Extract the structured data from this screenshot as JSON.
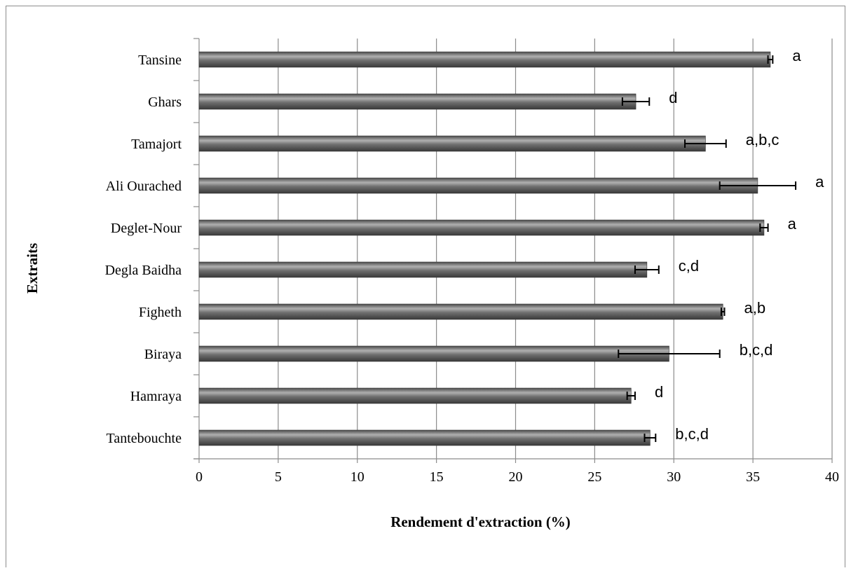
{
  "chart_data": {
    "type": "bar",
    "orientation": "horizontal",
    "categories": [
      "Tansine",
      "Ghars",
      "Tamajort",
      "Ali Ourached",
      "Deglet-Nour",
      "Degla Baidha",
      "Figheth",
      "Biraya",
      "Hamraya",
      "Tantebouchte"
    ],
    "values": [
      36.1,
      27.6,
      32.0,
      35.3,
      35.7,
      28.3,
      33.1,
      29.7,
      27.3,
      28.5
    ],
    "errors": [
      0.15,
      0.85,
      1.3,
      2.4,
      0.25,
      0.75,
      0.1,
      3.2,
      0.25,
      0.35
    ],
    "significance": [
      "a",
      "d",
      "a,b,c",
      "a",
      "a",
      "c,d",
      "a,b",
      "b,c,d",
      "d",
      "b,c,d"
    ],
    "xlabel": "Rendement d'extraction  (%)",
    "ylabel": "Extraits",
    "xlim": [
      0,
      40
    ],
    "xticks": [
      0,
      5,
      10,
      15,
      20,
      25,
      30,
      35,
      40
    ],
    "grid": "vertical",
    "legend": "none",
    "colors": {
      "bar": "#666666",
      "bar_highlight": "#b0b0b0",
      "bar_shadow": "#3a3a3a",
      "grid": "#8c8c8c",
      "axis": "#8c8c8c"
    }
  }
}
